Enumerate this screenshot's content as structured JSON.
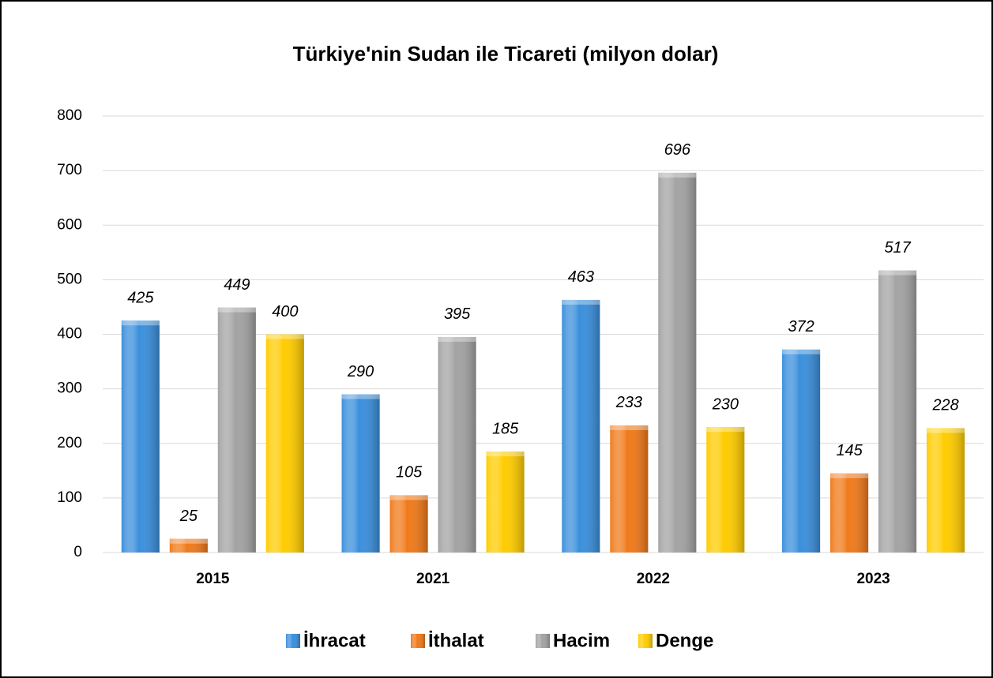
{
  "chart_data": {
    "type": "bar",
    "title": "Türkiye'nin Sudan ile Ticareti (milyon dolar)",
    "categories": [
      "2015",
      "2021",
      "2022",
      "2023"
    ],
    "series": [
      {
        "name": "İhracat",
        "color": "#3a8fdc",
        "values": [
          425,
          290,
          463,
          372
        ]
      },
      {
        "name": "İthalat",
        "color": "#f07a1a",
        "values": [
          25,
          105,
          233,
          145
        ]
      },
      {
        "name": "Hacim",
        "color": "#a3a3a3",
        "values": [
          449,
          395,
          696,
          517
        ]
      },
      {
        "name": "Denge",
        "color": "#ffcc00",
        "values": [
          400,
          185,
          230,
          228
        ]
      }
    ],
    "ylim": [
      0,
      800
    ],
    "yticks": [
      0,
      100,
      200,
      300,
      400,
      500,
      600,
      700,
      800
    ],
    "grid": true,
    "legend": "bottom"
  }
}
